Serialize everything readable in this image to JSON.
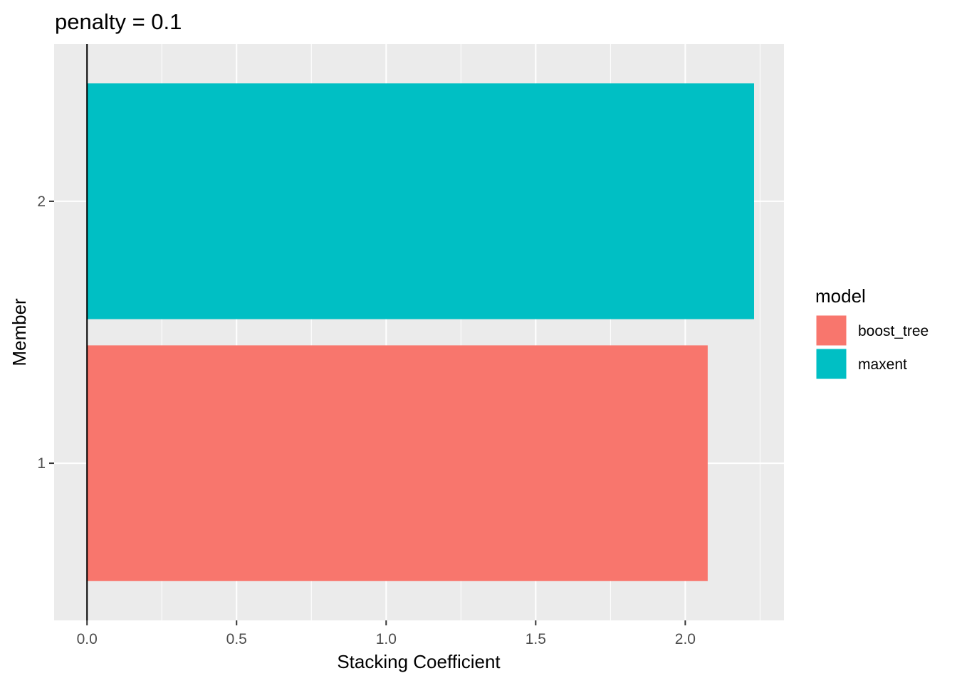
{
  "chart_data": {
    "type": "bar",
    "orientation": "horizontal",
    "title": "penalty = 0.1",
    "xlabel": "Stacking Coefficient",
    "ylabel": "Member",
    "categories": [
      "1",
      "2"
    ],
    "values": [
      2.075,
      2.23
    ],
    "bar_models": [
      "boost_tree",
      "maxent"
    ],
    "xlim": [
      -0.11,
      2.33
    ],
    "x_ticks": [
      0.0,
      0.5,
      1.0,
      1.5,
      2.0
    ],
    "x_tick_labels": [
      "0.0",
      "0.5",
      "1.0",
      "1.5",
      "2.0"
    ],
    "reference_line_x": 0,
    "grid": true,
    "legend": {
      "title": "model",
      "placement": "right",
      "entries": [
        {
          "label": "boost_tree",
          "color": "#F8766D"
        },
        {
          "label": "maxent",
          "color": "#00BFC4"
        }
      ]
    },
    "colors": {
      "panel_background": "#EBEBEB",
      "grid_line": "#FFFFFF",
      "reference_line": "#000000",
      "tick_mark": "#333333"
    }
  }
}
